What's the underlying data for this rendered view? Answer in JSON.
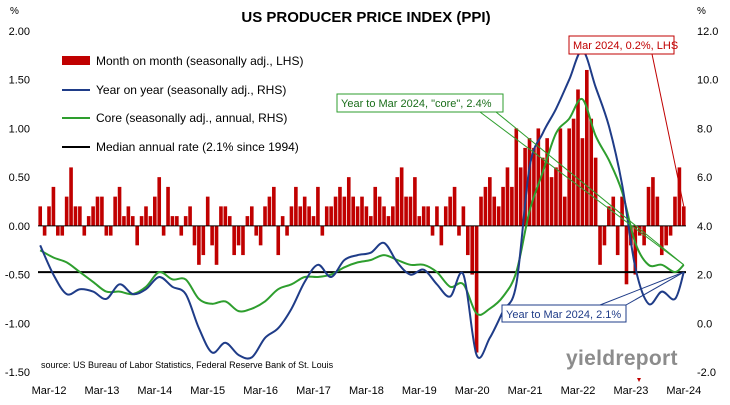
{
  "chart_data": {
    "type": "bar",
    "title": "US PRODUCER PRICE INDEX (PPI)",
    "left_unit": "%",
    "right_unit": "%",
    "source": "source: US Bureau of Labor Statistics, Federal Reserve Bank of St. Louis",
    "watermark": "yieldreport",
    "x_ticks": [
      "Mar-12",
      "Mar-13",
      "Mar-14",
      "Mar-15",
      "Mar-16",
      "Mar-17",
      "Mar-18",
      "Mar-19",
      "Mar-20",
      "Mar-21",
      "Mar-22",
      "Mar-23",
      "Mar-24"
    ],
    "x_range": [
      "2012-01",
      "2024-03"
    ],
    "left_axis": {
      "min": -1.5,
      "max": 2.0,
      "ticks": [
        "-1.50",
        "-1.00",
        "-0.50",
        "0.00",
        "0.50",
        "1.00",
        "1.50",
        "2.00"
      ]
    },
    "right_axis": {
      "min": -2.0,
      "max": 12.0,
      "ticks": [
        "-2.0",
        "0.0",
        "2.0",
        "4.0",
        "6.0",
        "8.0",
        "10.0",
        "12.0"
      ]
    },
    "grid": false,
    "legend_position": "top-left",
    "colors": {
      "mom": "#c00000",
      "yoy": "#1f3c88",
      "core": "#2e9e2e",
      "median": "#000000"
    },
    "series": [
      {
        "name": "Month on month (seasonally adj., LHS)",
        "kind": "bar",
        "axis": "left",
        "values": [
          0.2,
          -0.1,
          0.2,
          0.4,
          -0.1,
          -0.1,
          0.3,
          0.6,
          0.2,
          0.2,
          -0.1,
          0.1,
          0.2,
          0.3,
          0.3,
          -0.1,
          -0.1,
          0.3,
          0.4,
          0.1,
          0.2,
          0.1,
          -0.2,
          0.1,
          0.2,
          0.1,
          0.3,
          0.5,
          -0.1,
          0.4,
          0.1,
          0.1,
          -0.1,
          0.1,
          0.2,
          -0.2,
          -0.4,
          -0.3,
          0.3,
          -0.2,
          -0.4,
          0.2,
          0.2,
          0.1,
          -0.3,
          -0.2,
          -0.3,
          0.1,
          0.2,
          -0.1,
          -0.2,
          0.2,
          0.3,
          0.4,
          -0.3,
          0.1,
          -0.1,
          0.2,
          0.4,
          0.2,
          0.3,
          0.2,
          0.1,
          0.4,
          -0.1,
          0.2,
          0.2,
          0.3,
          0.4,
          0.3,
          0.5,
          0.3,
          0.2,
          0.3,
          0.2,
          0.1,
          0.4,
          0.3,
          0.2,
          0.1,
          0.2,
          0.5,
          0.6,
          0.3,
          0.3,
          0.5,
          0.1,
          0.2,
          0.2,
          -0.1,
          0.2,
          -0.2,
          0.2,
          0.3,
          0.4,
          -0.1,
          0.2,
          -0.3,
          -0.5,
          -1.3,
          0.3,
          0.4,
          0.5,
          0.3,
          0.2,
          0.4,
          0.6,
          0.4,
          1.0,
          0.6,
          0.8,
          0.9,
          0.8,
          1.0,
          0.7,
          0.9,
          0.5,
          0.6,
          1.0,
          0.3,
          1.0,
          1.1,
          1.4,
          0.9,
          1.6,
          1.1,
          0.7,
          -0.4,
          -0.2,
          0.2,
          0.3,
          -0.3,
          0.3,
          -0.6,
          -0.2,
          -0.5,
          -0.1,
          -0.2,
          0.4,
          0.5,
          0.3,
          -0.3,
          -0.2,
          -0.1,
          0.3,
          0.6,
          0.2
        ]
      },
      {
        "name": "Year on year (seasonally adj., RHS)",
        "kind": "line",
        "axis": "right",
        "points": [
          [
            "2012-01",
            3.2
          ],
          [
            "2012-04",
            2.0
          ],
          [
            "2012-07",
            1.2
          ],
          [
            "2012-10",
            1.4
          ],
          [
            "2013-01",
            1.3
          ],
          [
            "2013-04",
            1.0
          ],
          [
            "2013-07",
            1.6
          ],
          [
            "2013-10",
            1.2
          ],
          [
            "2014-01",
            1.4
          ],
          [
            "2014-04",
            1.9
          ],
          [
            "2014-07",
            1.5
          ],
          [
            "2014-10",
            1.2
          ],
          [
            "2015-01",
            -0.2
          ],
          [
            "2015-04",
            -1.2
          ],
          [
            "2015-07",
            -0.8
          ],
          [
            "2015-10",
            -1.3
          ],
          [
            "2016-01",
            -1.4
          ],
          [
            "2016-04",
            -0.6
          ],
          [
            "2016-07",
            -0.2
          ],
          [
            "2016-10",
            0.6
          ],
          [
            "2017-01",
            1.7
          ],
          [
            "2017-04",
            2.4
          ],
          [
            "2017-07",
            1.9
          ],
          [
            "2017-10",
            2.6
          ],
          [
            "2018-01",
            2.8
          ],
          [
            "2018-04",
            2.9
          ],
          [
            "2018-07",
            3.3
          ],
          [
            "2018-10",
            2.5
          ],
          [
            "2019-01",
            2.0
          ],
          [
            "2019-04",
            2.2
          ],
          [
            "2019-07",
            1.6
          ],
          [
            "2019-10",
            1.1
          ],
          [
            "2020-01",
            2.0
          ],
          [
            "2020-04",
            -1.3
          ],
          [
            "2020-07",
            -0.6
          ],
          [
            "2020-10",
            0.5
          ],
          [
            "2021-01",
            1.6
          ],
          [
            "2021-04",
            6.4
          ],
          [
            "2021-07",
            7.8
          ],
          [
            "2021-10",
            8.8
          ],
          [
            "2022-01",
            10.0
          ],
          [
            "2022-04",
            11.2
          ],
          [
            "2022-07",
            9.7
          ],
          [
            "2022-10",
            8.1
          ],
          [
            "2023-01",
            5.7
          ],
          [
            "2023-04",
            2.3
          ],
          [
            "2023-07",
            0.8
          ],
          [
            "2023-10",
            1.3
          ],
          [
            "2024-01",
            1.0
          ],
          [
            "2024-03",
            2.1
          ]
        ]
      },
      {
        "name": "Core (seasonally adj., annual, RHS)",
        "kind": "line",
        "axis": "right",
        "points": [
          [
            "2012-01",
            3.0
          ],
          [
            "2012-04",
            2.7
          ],
          [
            "2012-07",
            2.5
          ],
          [
            "2012-10",
            2.1
          ],
          [
            "2013-01",
            1.7
          ],
          [
            "2013-04",
            1.3
          ],
          [
            "2013-07",
            1.3
          ],
          [
            "2013-10",
            1.2
          ],
          [
            "2014-01",
            1.5
          ],
          [
            "2014-04",
            2.1
          ],
          [
            "2014-07",
            1.8
          ],
          [
            "2014-10",
            1.8
          ],
          [
            "2015-01",
            1.0
          ],
          [
            "2015-04",
            0.8
          ],
          [
            "2015-07",
            0.9
          ],
          [
            "2015-10",
            0.5
          ],
          [
            "2016-01",
            0.6
          ],
          [
            "2016-04",
            0.9
          ],
          [
            "2016-07",
            1.4
          ],
          [
            "2016-10",
            1.6
          ],
          [
            "2017-01",
            1.9
          ],
          [
            "2017-04",
            1.9
          ],
          [
            "2017-07",
            2.0
          ],
          [
            "2017-10",
            2.3
          ],
          [
            "2018-01",
            2.5
          ],
          [
            "2018-04",
            2.6
          ],
          [
            "2018-07",
            2.8
          ],
          [
            "2018-10",
            2.6
          ],
          [
            "2019-01",
            2.4
          ],
          [
            "2019-04",
            2.4
          ],
          [
            "2019-07",
            2.1
          ],
          [
            "2019-10",
            1.5
          ],
          [
            "2020-01",
            1.6
          ],
          [
            "2020-04",
            0.4
          ],
          [
            "2020-07",
            0.6
          ],
          [
            "2020-10",
            1.1
          ],
          [
            "2021-01",
            2.1
          ],
          [
            "2021-04",
            4.6
          ],
          [
            "2021-07",
            6.2
          ],
          [
            "2021-10",
            7.8
          ],
          [
            "2022-01",
            8.4
          ],
          [
            "2022-04",
            9.2
          ],
          [
            "2022-07",
            7.7
          ],
          [
            "2022-10",
            6.7
          ],
          [
            "2023-01",
            5.4
          ],
          [
            "2023-04",
            3.3
          ],
          [
            "2023-07",
            2.4
          ],
          [
            "2023-10",
            2.4
          ],
          [
            "2024-01",
            2.1
          ],
          [
            "2024-03",
            2.4
          ]
        ]
      },
      {
        "name": "Median annual rate (2.1% since 1994)",
        "kind": "hline",
        "axis": "right",
        "value": 2.1
      }
    ],
    "annotations": [
      {
        "text": "Mar 2024, 0.2%, LHS",
        "target": {
          "x": "2024-03",
          "axis": "left",
          "y": 0.2
        },
        "color": "#c00000"
      },
      {
        "text": "Year to Mar 2024, \"core\", 2.4%",
        "target": {
          "x": "2024-03",
          "axis": "right",
          "y": 2.4
        },
        "color": "#2e9e2e"
      },
      {
        "text": "Year to Mar 2024, 2.1%",
        "target": {
          "x": "2024-03",
          "axis": "right",
          "y": 2.1
        },
        "color": "#1f3c88"
      }
    ]
  }
}
